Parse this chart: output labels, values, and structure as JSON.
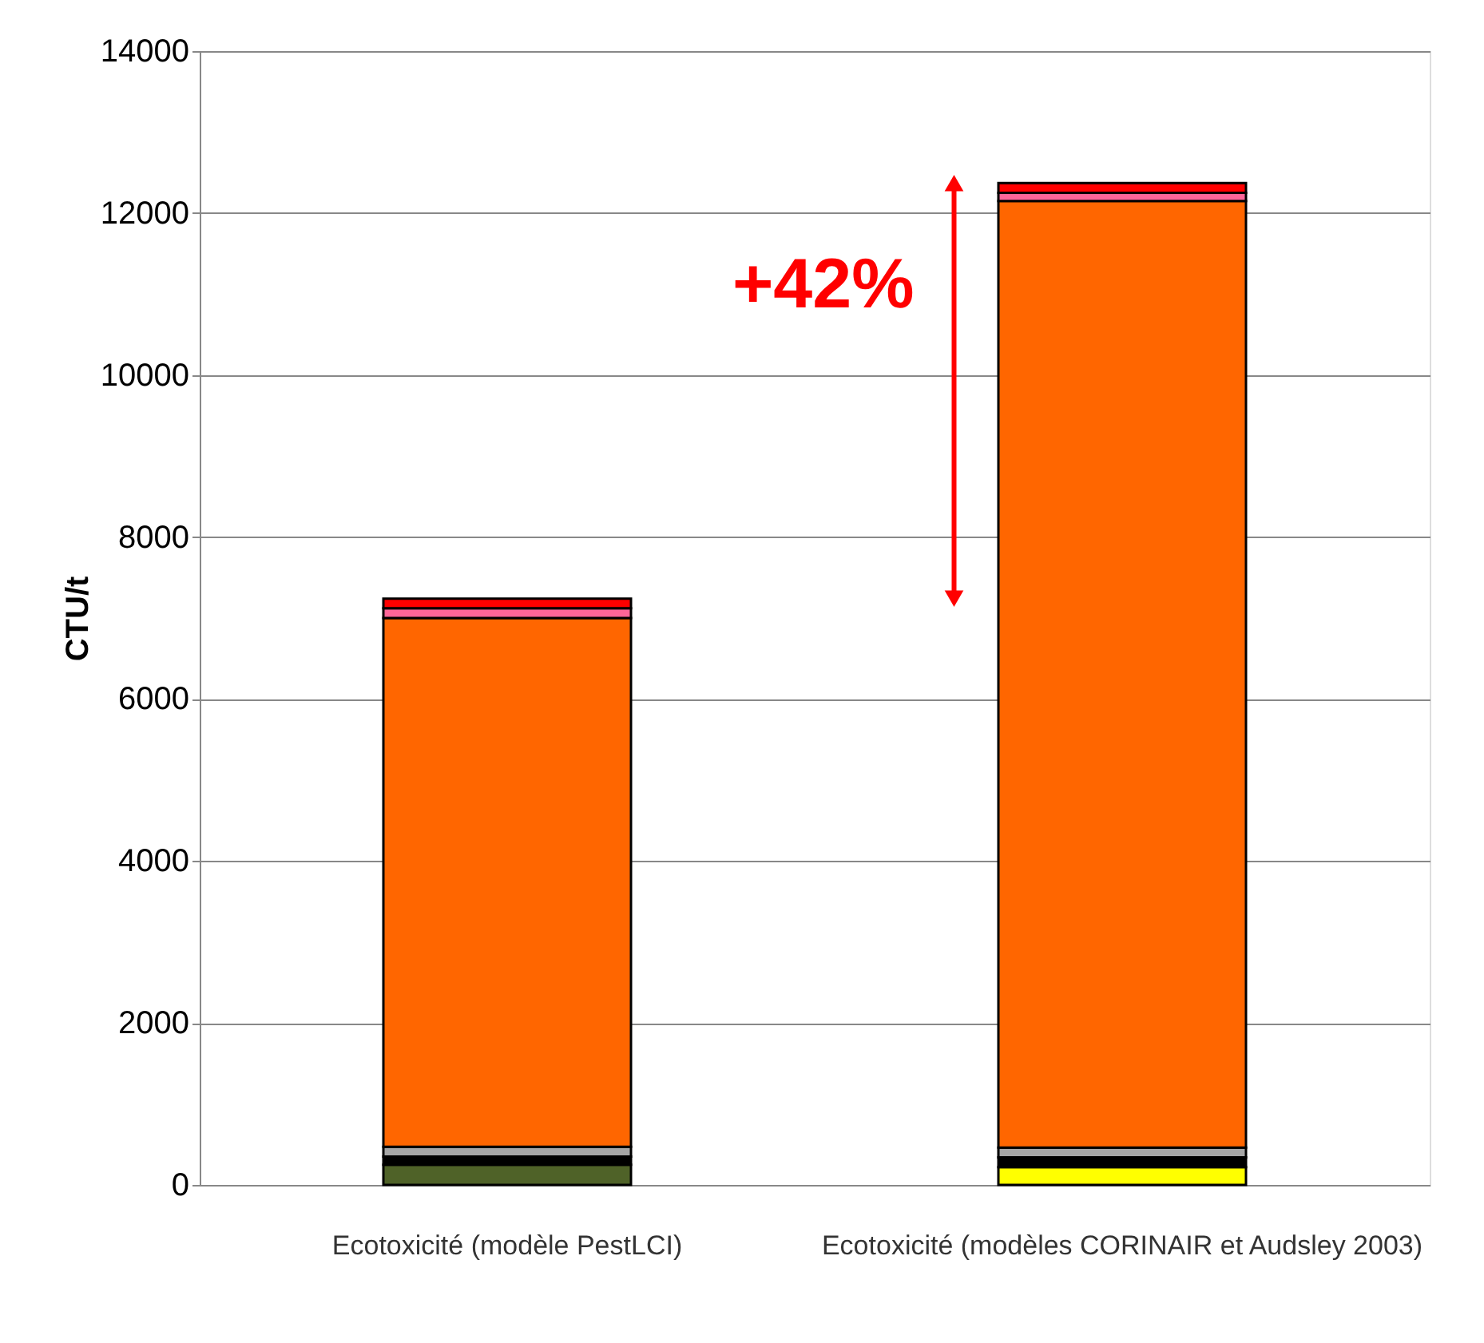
{
  "chart_data": {
    "type": "bar",
    "stacked": true,
    "categories": [
      "Ecotoxicité (modèle PestLCI)",
      "Ecotoxicité (modèles CORINAIR et Audsley 2003)"
    ],
    "series": [
      {
        "color": "#4f6228",
        "values": [
          250,
          null
        ]
      },
      {
        "color": "#ffff00",
        "values": [
          null,
          220
        ]
      },
      {
        "color": "#000000",
        "values": [
          100,
          120
        ]
      },
      {
        "color": "#a6a6a6",
        "values": [
          120,
          120
        ]
      },
      {
        "color": "#ff6600",
        "values": [
          6530,
          11690
        ]
      },
      {
        "color": "#ff6699",
        "values": [
          120,
          100
        ]
      },
      {
        "color": "#ff0000",
        "values": [
          120,
          120
        ]
      }
    ],
    "ylabel": "CTU/t",
    "ylim": [
      0,
      14000
    ],
    "yticks": [
      0,
      2000,
      4000,
      6000,
      8000,
      10000,
      12000,
      14000
    ],
    "grid": "y",
    "legend": false,
    "annotations": [
      "+42%"
    ]
  }
}
